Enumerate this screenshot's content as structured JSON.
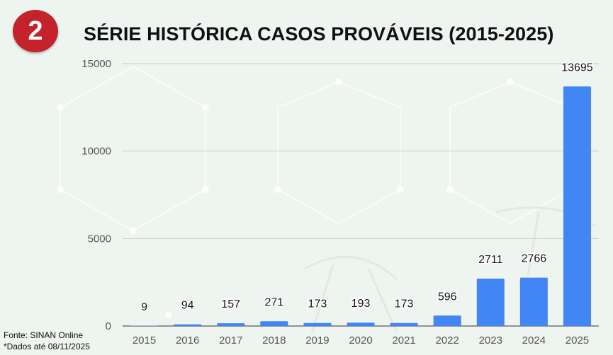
{
  "header": {
    "badge_number": "2",
    "title": "SÉRIE HISTÓRICA CASOS PROVÁVEIS (2015-2025)"
  },
  "footer": {
    "source": "Fonte: SINAN Online",
    "note": "*Dados até 08/11/2025"
  },
  "colors": {
    "bar": "#4285f4",
    "badge": "#c4232b",
    "grid": "#c6cac6",
    "background": "#eef4ef"
  },
  "chart_data": {
    "type": "bar",
    "categories": [
      "2015",
      "2016",
      "2017",
      "2018",
      "2019",
      "2020",
      "2021",
      "2022",
      "2023",
      "2024",
      "2025"
    ],
    "values": [
      9,
      94,
      157,
      271,
      173,
      193,
      173,
      596,
      2711,
      2766,
      13695
    ],
    "ylim": [
      0,
      15000
    ],
    "yticks": [
      0,
      5000,
      10000,
      15000
    ],
    "grid": true,
    "data_labels": true,
    "title": "SÉRIE HISTÓRICA CASOS PROVÁVEIS (2015-2025)"
  }
}
